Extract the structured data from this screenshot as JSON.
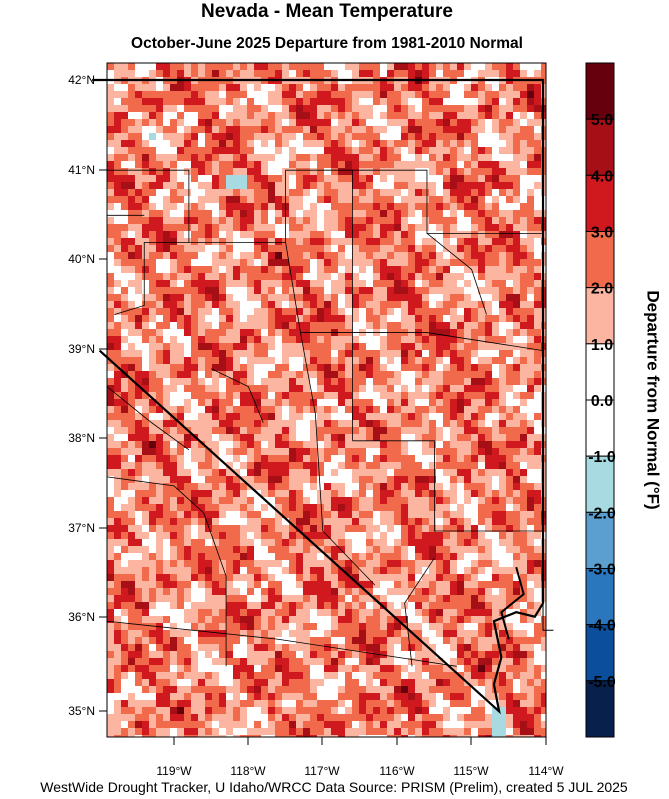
{
  "header": {
    "title": "Nevada - Mean Temperature",
    "subtitle": "October-June 2025  Departure from 1981-2010 Normal"
  },
  "map": {
    "lat_labels": [
      "42°N",
      "41°N",
      "40°N",
      "39°N",
      "38°N",
      "37°N",
      "36°N",
      "35°N"
    ],
    "lon_labels": [
      "119°W",
      "118°W",
      "117°W",
      "116°W",
      "115°W",
      "114°W"
    ]
  },
  "legend": {
    "title": "Departure from Normal (°F)",
    "labels": [
      "5.0",
      "4.0",
      "3.0",
      "2.0",
      "1.0",
      "0.0",
      "-1.0",
      "-2.0",
      "-3.0",
      "-4.0",
      "-5.0"
    ],
    "colors": [
      "#67000d",
      "#a50f15",
      "#d0191e",
      "#f26a4c",
      "#fbb5a1",
      "#ffffff",
      "#ffffff",
      "#a7dbe1",
      "#5b9fd0",
      "#2a77bd",
      "#0b4e9c",
      "#08214c"
    ]
  },
  "footer": "WestWide Drought Tracker, U Idaho/WRCC Data Source: PRISM (Prelim), created  5 JUL 2025"
}
